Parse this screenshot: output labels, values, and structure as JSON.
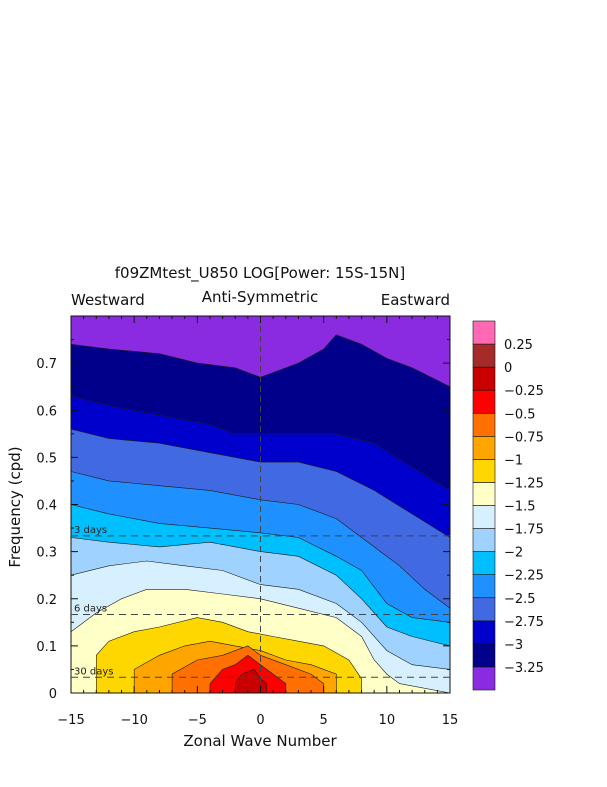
{
  "chart_data": {
    "type": "heatmap",
    "title": "f09ZMtest_U850 LOG[Power: 15S-15N]",
    "subtitle": "Anti-Symmetric",
    "left_header": "Westward",
    "right_header": "Eastward",
    "xlabel": "Zonal Wave Number",
    "ylabel": "Frequency (cpd)",
    "xlim": [
      -15,
      15
    ],
    "ylim": [
      0,
      0.8
    ],
    "x_ticks": [
      -15,
      -10,
      -5,
      0,
      5,
      10,
      15
    ],
    "x_tick_labels": [
      "−15",
      "−10",
      "−5",
      "0",
      "5",
      "10",
      "15"
    ],
    "y_ticks": [
      0,
      0.1,
      0.2,
      0.3,
      0.4,
      0.5,
      0.6,
      0.7
    ],
    "y_tick_labels": [
      "0",
      "0.1",
      "0.2",
      "0.3",
      "0.4",
      "0.5",
      "0.6",
      "0.7"
    ],
    "period_lines": [
      {
        "label": "3 days",
        "frequency": 0.3333
      },
      {
        "label": "6 days",
        "frequency": 0.1667
      },
      {
        "label": "30 days",
        "frequency": 0.0333
      }
    ],
    "colorbar": {
      "levels": [
        -3.25,
        -3,
        -2.75,
        -2.5,
        -2.25,
        -2,
        -1.75,
        -1.5,
        -1.25,
        -1,
        -0.75,
        -0.5,
        -0.25,
        0,
        0.25
      ],
      "level_labels": [
        "−3.25",
        "−3",
        "−2.75",
        "−2.5",
        "−2.25",
        "−2",
        "−1.75",
        "−1.5",
        "−1.25",
        "−1",
        "−0.75",
        "−0.5",
        "−0.25",
        "0",
        "0.25"
      ],
      "colors": [
        "#8a2be2",
        "#00008b",
        "#0000cd",
        "#4169e1",
        "#1e90ff",
        "#00bfff",
        "#a0d2ff",
        "#d7f0ff",
        "#ffffc8",
        "#ffd700",
        "#ffa500",
        "#ff7000",
        "#ff0000",
        "#c80000",
        "#a52a2a",
        "#ff69b4"
      ]
    },
    "contour_bands": [
      {
        "level": -3.25,
        "boundary": [
          [
            -15,
            0.74
          ],
          [
            -12,
            0.73
          ],
          [
            -8,
            0.72
          ],
          [
            -5,
            0.7
          ],
          [
            -2,
            0.69
          ],
          [
            0,
            0.67
          ],
          [
            3,
            0.7
          ],
          [
            5,
            0.73
          ],
          [
            6,
            0.76
          ],
          [
            8,
            0.74
          ],
          [
            10,
            0.71
          ],
          [
            12,
            0.69
          ],
          [
            15,
            0.65
          ]
        ]
      },
      {
        "level": -3.0,
        "boundary": [
          [
            -15,
            0.63
          ],
          [
            -12,
            0.61
          ],
          [
            -8,
            0.59
          ],
          [
            -4,
            0.57
          ],
          [
            -2,
            0.55
          ],
          [
            0,
            0.55
          ],
          [
            3,
            0.55
          ],
          [
            6,
            0.55
          ],
          [
            9,
            0.53
          ],
          [
            12,
            0.48
          ],
          [
            15,
            0.43
          ]
        ]
      },
      {
        "level": -2.75,
        "boundary": [
          [
            -15,
            0.56
          ],
          [
            -12,
            0.54
          ],
          [
            -8,
            0.53
          ],
          [
            -4,
            0.51
          ],
          [
            0,
            0.49
          ],
          [
            3,
            0.49
          ],
          [
            6,
            0.47
          ],
          [
            9,
            0.43
          ],
          [
            12,
            0.38
          ],
          [
            15,
            0.33
          ]
        ]
      },
      {
        "level": -2.5,
        "boundary": [
          [
            -15,
            0.47
          ],
          [
            -12,
            0.45
          ],
          [
            -8,
            0.44
          ],
          [
            -4,
            0.43
          ],
          [
            0,
            0.41
          ],
          [
            3,
            0.4
          ],
          [
            6,
            0.37
          ],
          [
            9,
            0.31
          ],
          [
            11,
            0.27
          ],
          [
            13,
            0.22
          ],
          [
            15,
            0.18
          ]
        ]
      },
      {
        "level": -2.25,
        "boundary": [
          [
            -15,
            0.4
          ],
          [
            -12,
            0.38
          ],
          [
            -8,
            0.36
          ],
          [
            -4,
            0.35
          ],
          [
            0,
            0.34
          ],
          [
            3,
            0.33
          ],
          [
            6,
            0.29
          ],
          [
            8,
            0.26
          ],
          [
            10,
            0.19
          ],
          [
            12,
            0.16
          ],
          [
            15,
            0.15
          ]
        ]
      },
      {
        "level": -2.0,
        "boundary": [
          [
            -15,
            0.33
          ],
          [
            -12,
            0.32
          ],
          [
            -8,
            0.31
          ],
          [
            -4,
            0.32
          ],
          [
            0,
            0.3
          ],
          [
            3,
            0.29
          ],
          [
            6,
            0.25
          ],
          [
            8,
            0.2
          ],
          [
            10,
            0.14
          ],
          [
            12,
            0.12
          ],
          [
            15,
            0.1
          ]
        ]
      },
      {
        "level": -1.75,
        "boundary": [
          [
            -15,
            0.25
          ],
          [
            -12,
            0.27
          ],
          [
            -9,
            0.28
          ],
          [
            -6,
            0.27
          ],
          [
            -3,
            0.26
          ],
          [
            0,
            0.23
          ],
          [
            3,
            0.22
          ],
          [
            6,
            0.19
          ],
          [
            8,
            0.15
          ],
          [
            10,
            0.09
          ],
          [
            12,
            0.06
          ],
          [
            15,
            0.05
          ]
        ]
      },
      {
        "level": -1.5,
        "boundary": [
          [
            -15,
            0.13
          ],
          [
            -13,
            0.17
          ],
          [
            -11,
            0.2
          ],
          [
            -9,
            0.22
          ],
          [
            -6,
            0.22
          ],
          [
            -3,
            0.21
          ],
          [
            0,
            0.2
          ],
          [
            3,
            0.18
          ],
          [
            6,
            0.16
          ],
          [
            8,
            0.12
          ],
          [
            9,
            0.07
          ],
          [
            10,
            0.04
          ],
          [
            11,
            0.02
          ]
        ]
      },
      {
        "level": -1.25,
        "boundary": [
          [
            -13,
            0.02
          ],
          [
            -13,
            0.08
          ],
          [
            -12,
            0.11
          ],
          [
            -10,
            0.13
          ],
          [
            -8,
            0.14
          ],
          [
            -5,
            0.16
          ],
          [
            -3,
            0.15
          ],
          [
            -1,
            0.13
          ],
          [
            1,
            0.12
          ],
          [
            3,
            0.11
          ],
          [
            5,
            0.1
          ],
          [
            7,
            0.07
          ],
          [
            8,
            0.03
          ],
          [
            8,
            0.02
          ]
        ]
      },
      {
        "level": -1.0,
        "boundary": [
          [
            -10,
            0.02
          ],
          [
            -10,
            0.05
          ],
          [
            -8,
            0.08
          ],
          [
            -6,
            0.1
          ],
          [
            -4,
            0.11
          ],
          [
            -2,
            0.1
          ],
          [
            0,
            0.09
          ],
          [
            2,
            0.07
          ],
          [
            4,
            0.06
          ],
          [
            6,
            0.04
          ],
          [
            6,
            0.02
          ]
        ]
      },
      {
        "level": -0.75,
        "boundary": [
          [
            -7,
            0.02
          ],
          [
            -7,
            0.04
          ],
          [
            -5,
            0.07
          ],
          [
            -3,
            0.08
          ],
          [
            -1,
            0.1
          ],
          [
            0,
            0.08
          ],
          [
            2,
            0.06
          ],
          [
            4,
            0.04
          ],
          [
            5,
            0.02
          ]
        ]
      },
      {
        "level": -0.5,
        "boundary": [
          [
            -4,
            0.02
          ],
          [
            -3,
            0.05
          ],
          [
            -2,
            0.06
          ],
          [
            -1,
            0.08
          ],
          [
            0,
            0.06
          ],
          [
            1,
            0.04
          ],
          [
            2,
            0.02
          ]
        ]
      },
      {
        "level": -0.25,
        "boundary": [
          [
            -2,
            0.02
          ],
          [
            -1.5,
            0.04
          ],
          [
            -0.5,
            0.05
          ],
          [
            0,
            0.03
          ],
          [
            0.5,
            0.02
          ]
        ]
      }
    ],
    "grid": false
  }
}
